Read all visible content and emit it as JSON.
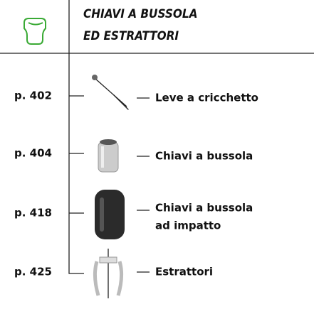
{
  "header": {
    "title": [
      "CHIAVI A BUSSOLA",
      "ED ESTRATTORI"
    ]
  },
  "entries": [
    {
      "page": "p. 402",
      "label": [
        "Leve a cricchetto"
      ]
    },
    {
      "page": "p. 404",
      "label": [
        "Chiavi a bussola"
      ]
    },
    {
      "page": "p. 418",
      "label": [
        "Chiavi a bussola",
        "ad impatto"
      ]
    },
    {
      "page": "p. 425",
      "label": [
        "Estrattori"
      ]
    }
  ]
}
